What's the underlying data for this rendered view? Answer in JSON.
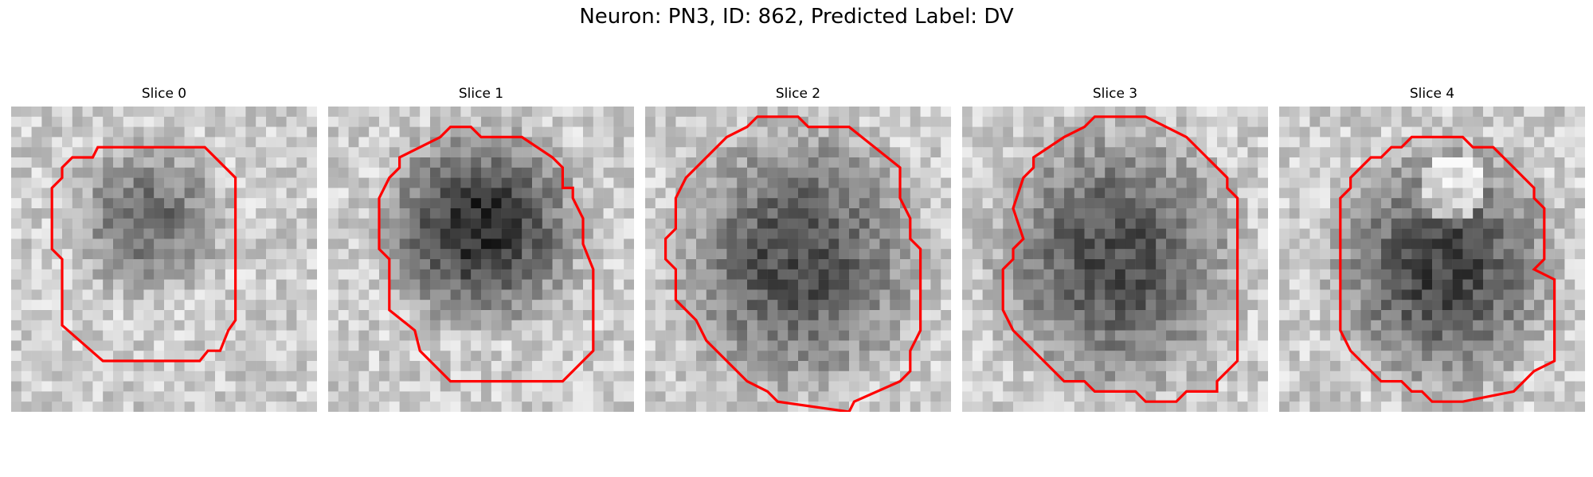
{
  "title": "Neuron: PN3, ID: 862, Predicted Label: DV",
  "contour_color": "#ff0000",
  "panels": [
    {
      "title": "Slice 0",
      "seed": 11,
      "blob_strength": 0.45
    },
    {
      "title": "Slice 1",
      "seed": 23,
      "blob_strength": 0.75
    },
    {
      "title": "Slice 2",
      "seed": 37,
      "blob_strength": 0.6
    },
    {
      "title": "Slice 3",
      "seed": 51,
      "blob_strength": 0.6
    },
    {
      "title": "Slice 4",
      "seed": 67,
      "blob_strength": 0.65
    }
  ]
}
